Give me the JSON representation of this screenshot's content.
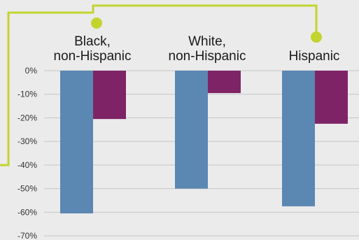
{
  "chart_data": {
    "type": "bar",
    "title": "",
    "xlabel": "",
    "ylabel": "",
    "categories": [
      [
        "Black,",
        "non-Hispanic"
      ],
      [
        "White,",
        "non-Hispanic"
      ],
      [
        "Hispanic"
      ]
    ],
    "series": [
      {
        "values": [
          -60.5,
          -50,
          -57.5
        ],
        "color": "#5b87b3"
      },
      {
        "values": [
          -20.5,
          -9.5,
          -22.5
        ],
        "color": "#7e2466"
      }
    ],
    "ylim": [
      -70,
      0
    ],
    "yticks": [
      "0%",
      "-10%",
      "-20%",
      "-30%",
      "-40%",
      "-50%",
      "-60%",
      "-70%"
    ],
    "grid": true,
    "legend": "none",
    "annotation_color": "#c3d42f"
  }
}
